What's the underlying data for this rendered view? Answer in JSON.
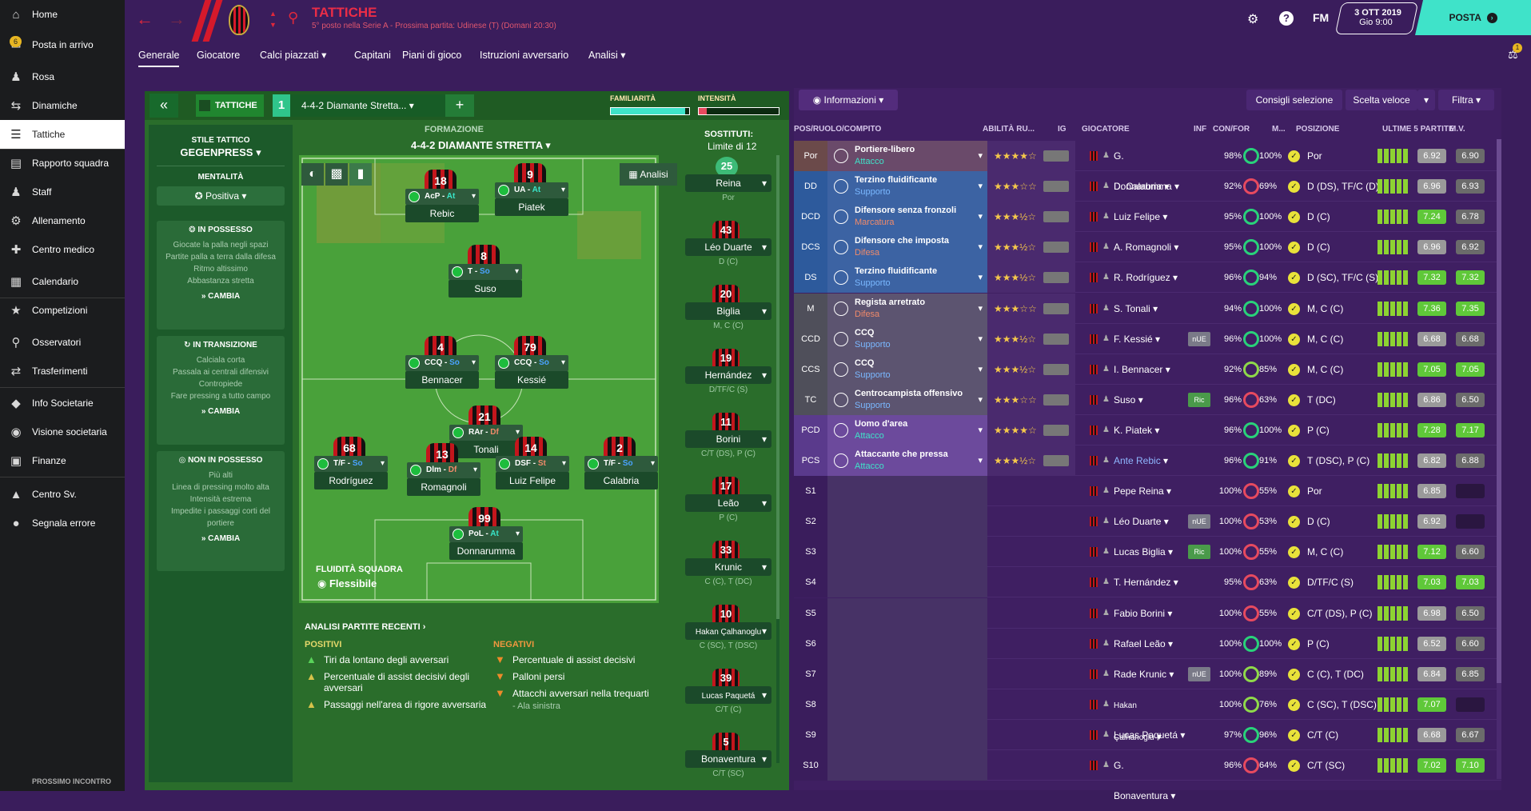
{
  "sidebar": {
    "items": [
      {
        "label": "Home",
        "icon": "home-icon"
      },
      {
        "label": "Posta in arrivo",
        "icon": "inbox-icon",
        "badge": "6"
      },
      {
        "label": "Rosa",
        "icon": "squad-icon"
      },
      {
        "label": "Dinamiche",
        "icon": "dynamics-icon"
      },
      {
        "label": "Tattiche",
        "icon": "tactics-icon",
        "active": true
      },
      {
        "label": "Rapporto squadra",
        "icon": "report-icon"
      },
      {
        "label": "Staff",
        "icon": "staff-icon"
      },
      {
        "label": "Allenamento",
        "icon": "training-icon"
      },
      {
        "label": "Centro medico",
        "icon": "medical-icon"
      },
      {
        "label": "Calendario",
        "icon": "calendar-icon"
      },
      {
        "label": "Competizioni",
        "icon": "trophy-icon"
      },
      {
        "label": "Osservatori",
        "icon": "scouting-icon"
      },
      {
        "label": "Trasferimenti",
        "icon": "transfers-icon"
      },
      {
        "label": "Info Societarie",
        "icon": "club-info-icon"
      },
      {
        "label": "Visione societaria",
        "icon": "club-vision-icon"
      },
      {
        "label": "Finanze",
        "icon": "finances-icon"
      },
      {
        "label": "Centro Sv.",
        "icon": "dev-centre-icon"
      },
      {
        "label": "Segnala errore",
        "icon": "bug-icon"
      }
    ],
    "next_match": "PROSSIMO INCONTRO"
  },
  "header": {
    "title": "TATTICHE",
    "subtitle": "5° posto nella Serie A - Prossima partita: Udinese (T) (Domani 20:30)",
    "date": "3 OTT 2019",
    "time": "Gio 9:00",
    "fm": "FM",
    "continue": "POSTA",
    "notif_badge": "1"
  },
  "tabs": [
    "Generale",
    "Giocatore",
    "Calci piazzati",
    "Capitani",
    "Piani di gioco",
    "Istruzioni avversario",
    "Analisi"
  ],
  "tactic": {
    "label": "TATTICHE",
    "slot": "1",
    "formation_sel": "4-4-2 Diamante Stretta...",
    "fam_label": "FAMILIARITÀ",
    "int_label": "INTENSITÀ",
    "familiarity": 0.95,
    "intensity": 0.1,
    "style_title": "STILE TATTICO",
    "style": "GEGENPRESS",
    "mentality_title": "MENTALITÀ",
    "mentality": "Positiva",
    "in_possession": {
      "title": "IN POSSESSO",
      "lines": [
        "Giocate la palla negli spazi",
        "Partite palla a terra dalla difesa",
        "Ritmo altissimo",
        "Abbastanza stretta"
      ],
      "btn": "CAMBIA"
    },
    "in_transition": {
      "title": "IN TRANSIZIONE",
      "lines": [
        "Calciala corta",
        "Passala ai centrali difensivi",
        "Contropiede",
        "Fare pressing a tutto campo"
      ],
      "btn": "CAMBIA"
    },
    "out_possession": {
      "title": "NON IN POSSESSO",
      "lines": [
        "Più alti",
        "Linea di pressing molto alta",
        "Intensità estrema",
        "Impedite i passaggi corti del portiere"
      ],
      "btn": "CAMBIA"
    },
    "formation_title": "FORMAZIONE",
    "formation": "4-4-2 DIAMANTE STRETTA",
    "analysis_btn": "Analisi",
    "fluidity_title": "FLUIDITÀ SQUADRA",
    "fluidity": "Flessibile",
    "subs_title": "SOSTITUTI:",
    "subs_limit": "Limite di 12"
  },
  "players": [
    {
      "num": "18",
      "role": "AcP",
      "duty": "At",
      "name": "Rebic"
    },
    {
      "num": "9",
      "role": "UA",
      "duty": "At",
      "name": "Piatek"
    },
    {
      "num": "8",
      "role": "T",
      "duty": "So",
      "name": "Suso"
    },
    {
      "num": "4",
      "role": "CCQ",
      "duty": "So",
      "name": "Bennacer"
    },
    {
      "num": "79",
      "role": "CCQ",
      "duty": "So",
      "name": "Kessié"
    },
    {
      "num": "21",
      "role": "RAr",
      "duty": "Df",
      "name": "Tonali"
    },
    {
      "num": "68",
      "role": "T/F",
      "duty": "So",
      "name": "Rodríguez"
    },
    {
      "num": "13",
      "role": "Dlm",
      "duty": "Df",
      "name": "Romagnoli"
    },
    {
      "num": "14",
      "role": "DSF",
      "duty": "St",
      "name": "Luiz Felipe"
    },
    {
      "num": "2",
      "role": "T/F",
      "duty": "So",
      "name": "Calabria"
    },
    {
      "num": "99",
      "role": "PoL",
      "duty": "At",
      "name": "Donnarumma"
    }
  ],
  "subs": [
    {
      "num": "25",
      "name": "Reina",
      "pos": "Por"
    },
    {
      "num": "43",
      "name": "Léo Duarte",
      "pos": "D (C)"
    },
    {
      "num": "20",
      "name": "Biglia",
      "pos": "M, C (C)"
    },
    {
      "num": "19",
      "name": "Hernández",
      "pos": "D/TF/C (S)"
    },
    {
      "num": "11",
      "name": "Borini",
      "pos": "C/T (DS), P (C)"
    },
    {
      "num": "17",
      "name": "Leão",
      "pos": "P (C)"
    },
    {
      "num": "33",
      "name": "Krunic",
      "pos": "C (C), T (DC)"
    },
    {
      "num": "10",
      "name": "Hakan Çalhanoglu",
      "pos": "C (SC), T (DSC)"
    },
    {
      "num": "39",
      "name": "Lucas Paquetá",
      "pos": "C/T (C)"
    },
    {
      "num": "5",
      "name": "Bonaventura",
      "pos": "C/T (SC)"
    }
  ],
  "analysis": {
    "title": "ANALISI PARTITE RECENTI",
    "pos_title": "POSITIVI",
    "neg_title": "NEGATIVI",
    "positives": [
      "Tiri da lontano degli avversari",
      "Percentuale di assist decisivi degli avversari",
      "Passaggi nell'area di rigore avversaria"
    ],
    "negatives": [
      "Percentuale di assist decisivi",
      "Palloni persi",
      "Attacchi avversari nella trequarti"
    ],
    "neg_note": "- Ala sinistra"
  },
  "right": {
    "info_btn": "Informazioni",
    "consigli": "Consigli selezione",
    "scelta": "Scelta veloce",
    "filtra": "Filtra",
    "cols": [
      "POS/RUOLO/COMPITO",
      "ABILITÀ RU...",
      "IG",
      "GIOCATORE",
      "INF",
      "CON/FOR",
      "M...",
      "POSIZIONE",
      "ULTIME 5 PARTITE",
      "M.V."
    ],
    "rows": [
      {
        "pos": "Por",
        "role": "Portiere-libero",
        "duty": "Attacco",
        "stars": "★★★★☆",
        "player": "G. Donnarumma",
        "inf": "",
        "con": "98%",
        "fit": "100%",
        "posz": "Por",
        "r1": "6.92",
        "r2": "6.90"
      },
      {
        "pos": "DD",
        "role": "Terzino fluidificante",
        "duty": "Supporto",
        "stars": "★★★☆☆",
        "player": "D. Calabria",
        "inf": "",
        "con": "92%",
        "fit": "69%",
        "posz": "D (DS), TF/C (D)",
        "r1": "6.96",
        "r2": "6.93"
      },
      {
        "pos": "DCD",
        "role": "Difensore senza fronzoli",
        "duty": "Marcatura",
        "stars": "★★★½☆",
        "player": "Luiz Felipe",
        "inf": "",
        "con": "95%",
        "fit": "100%",
        "posz": "D (C)",
        "r1": "7.24",
        "r2": "6.78"
      },
      {
        "pos": "DCS",
        "role": "Difensore che imposta",
        "duty": "Difesa",
        "stars": "★★★½☆",
        "player": "A. Romagnoli",
        "inf": "",
        "con": "95%",
        "fit": "100%",
        "posz": "D (C)",
        "r1": "6.96",
        "r2": "6.92"
      },
      {
        "pos": "DS",
        "role": "Terzino fluidificante",
        "duty": "Supporto",
        "stars": "★★★½☆",
        "player": "R. Rodríguez",
        "inf": "",
        "con": "96%",
        "fit": "94%",
        "posz": "D (SC), TF/C (S)",
        "r1": "7.32",
        "r2": "7.32"
      },
      {
        "pos": "M",
        "role": "Regista arretrato",
        "duty": "Difesa",
        "stars": "★★★☆☆",
        "player": "S. Tonali",
        "inf": "",
        "con": "94%",
        "fit": "100%",
        "posz": "M, C (C)",
        "r1": "7.36",
        "r2": "7.35"
      },
      {
        "pos": "CCD",
        "role": "CCQ",
        "duty": "Supporto",
        "stars": "★★★½☆",
        "player": "F. Kessié",
        "inf": "nUE",
        "con": "96%",
        "fit": "100%",
        "posz": "M, C (C)",
        "r1": "6.68",
        "r2": "6.68"
      },
      {
        "pos": "CCS",
        "role": "CCQ",
        "duty": "Supporto",
        "stars": "★★★½☆",
        "player": "I. Bennacer",
        "inf": "",
        "con": "92%",
        "fit": "85%",
        "posz": "M, C (C)",
        "r1": "7.05",
        "r2": "7.05"
      },
      {
        "pos": "TC",
        "role": "Centrocampista offensivo",
        "duty": "Supporto",
        "stars": "★★★☆☆",
        "player": "Suso",
        "inf": "Ric",
        "con": "96%",
        "fit": "63%",
        "posz": "T (DC)",
        "r1": "6.86",
        "r2": "6.50"
      },
      {
        "pos": "PCD",
        "role": "Uomo d'area",
        "duty": "Attacco",
        "stars": "★★★★☆",
        "player": "K. Piatek",
        "inf": "",
        "con": "96%",
        "fit": "100%",
        "posz": "P (C)",
        "r1": "7.28",
        "r2": "7.17"
      },
      {
        "pos": "PCS",
        "role": "Attaccante che pressa",
        "duty": "Attacco",
        "stars": "★★★½☆",
        "player": "Ante Rebic",
        "inf": "",
        "con": "96%",
        "fit": "91%",
        "posz": "T (DSC), P (C)",
        "r1": "6.82",
        "r2": "6.88"
      },
      {
        "pos": "S1",
        "role": "",
        "duty": "",
        "stars": "",
        "player": "Pepe Reina",
        "inf": "",
        "con": "100%",
        "fit": "55%",
        "posz": "Por",
        "r1": "6.85",
        "r2": ""
      },
      {
        "pos": "S2",
        "role": "",
        "duty": "",
        "stars": "",
        "player": "Léo Duarte",
        "inf": "nUE",
        "con": "100%",
        "fit": "53%",
        "posz": "D (C)",
        "r1": "6.92",
        "r2": ""
      },
      {
        "pos": "S3",
        "role": "",
        "duty": "",
        "stars": "",
        "player": "Lucas Biglia",
        "inf": "Ric",
        "con": "100%",
        "fit": "55%",
        "posz": "M, C (C)",
        "r1": "7.12",
        "r2": "6.60"
      },
      {
        "pos": "S4",
        "role": "",
        "duty": "",
        "stars": "",
        "player": "T. Hernández",
        "inf": "",
        "con": "95%",
        "fit": "63%",
        "posz": "D/TF/C (S)",
        "r1": "7.03",
        "r2": "7.03"
      },
      {
        "pos": "S5",
        "role": "",
        "duty": "",
        "stars": "",
        "player": "Fabio Borini",
        "inf": "",
        "con": "100%",
        "fit": "55%",
        "posz": "C/T (DS), P (C)",
        "r1": "6.98",
        "r2": "6.50"
      },
      {
        "pos": "S6",
        "role": "",
        "duty": "",
        "stars": "",
        "player": "Rafael Leão",
        "inf": "",
        "con": "100%",
        "fit": "100%",
        "posz": "P (C)",
        "r1": "6.52",
        "r2": "6.60"
      },
      {
        "pos": "S7",
        "role": "",
        "duty": "",
        "stars": "",
        "player": "Rade Krunic",
        "inf": "nUE",
        "con": "100%",
        "fit": "89%",
        "posz": "C (C), T (DC)",
        "r1": "6.84",
        "r2": "6.85"
      },
      {
        "pos": "S8",
        "role": "",
        "duty": "",
        "stars": "",
        "player": "Hakan Çalhanoglu",
        "inf": "",
        "con": "100%",
        "fit": "76%",
        "posz": "C (SC), T (DSC)",
        "r1": "7.07",
        "r2": ""
      },
      {
        "pos": "S9",
        "role": "",
        "duty": "",
        "stars": "",
        "player": "Lucas Paquetá",
        "inf": "",
        "con": "97%",
        "fit": "96%",
        "posz": "C/T (C)",
        "r1": "6.68",
        "r2": "6.67"
      },
      {
        "pos": "S10",
        "role": "",
        "duty": "",
        "stars": "",
        "player": "G. Bonaventura",
        "inf": "",
        "con": "96%",
        "fit": "64%",
        "posz": "C/T (SC)",
        "r1": "7.02",
        "r2": "7.10"
      }
    ]
  }
}
